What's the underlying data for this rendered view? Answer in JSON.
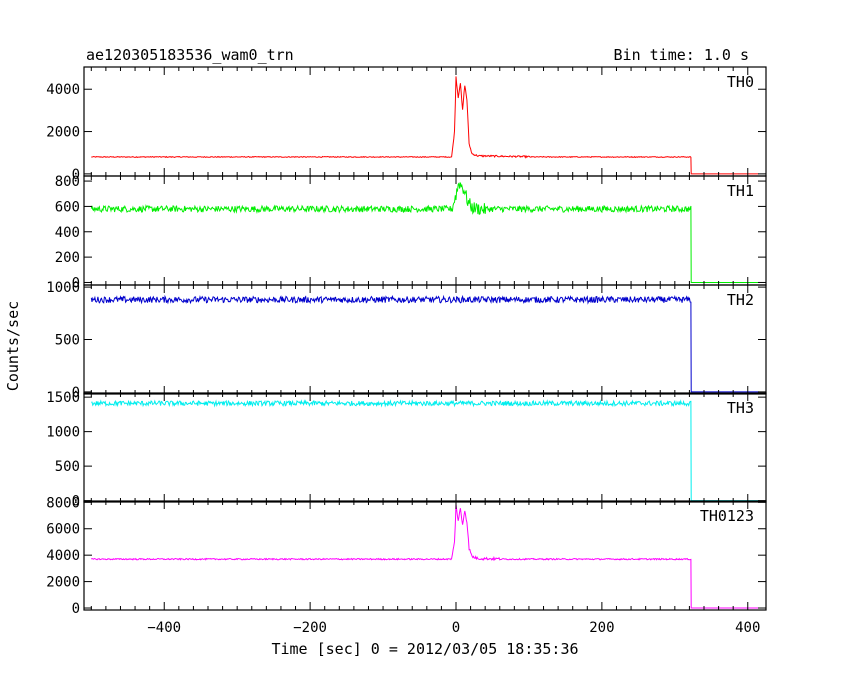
{
  "header": {
    "title": "ae120305183536_wam0_trn",
    "bin_time": "Bin time: 1.0 s"
  },
  "chart_data": {
    "type": "line",
    "xlabel": "Time [sec] 0 = 2012/03/05 18:35:36",
    "ylabel": "Counts/sec",
    "xlim": [
      -510,
      425
    ],
    "x_ticks": [
      -400,
      -200,
      0,
      200,
      400
    ],
    "x_tick_labels": [
      "−400",
      "−200",
      "0",
      "200",
      "400"
    ],
    "grid": false,
    "panels": [
      {
        "name": "TH0",
        "color": "#ff0000",
        "ylim": [
          -100,
          5050
        ],
        "y_ticks": [
          0,
          2000,
          4000
        ],
        "y_tick_labels": [
          "0",
          "2000",
          "4000"
        ],
        "baseline": 800,
        "noise": 20,
        "flare": [
          [
            -6,
            800
          ],
          [
            -2,
            2000
          ],
          [
            0,
            4600
          ],
          [
            3,
            3600
          ],
          [
            6,
            4300
          ],
          [
            9,
            3000
          ],
          [
            12,
            4200
          ],
          [
            15,
            3500
          ],
          [
            18,
            1400
          ],
          [
            22,
            950
          ],
          [
            30,
            850
          ],
          [
            50,
            840
          ],
          [
            100,
            810
          ]
        ],
        "drop_time": 322,
        "post_value": 0,
        "x_end": 415
      },
      {
        "name": "TH1",
        "color": "#00ee00",
        "ylim": [
          -20,
          840
        ],
        "y_ticks": [
          0,
          200,
          400,
          600,
          800
        ],
        "y_tick_labels": [
          "0",
          "200",
          "400",
          "600",
          "800"
        ],
        "baseline": 580,
        "noise": 25,
        "flare": [
          [
            -6,
            575
          ],
          [
            0,
            690
          ],
          [
            4,
            790
          ],
          [
            8,
            760
          ],
          [
            12,
            720
          ],
          [
            16,
            640
          ],
          [
            22,
            590
          ],
          [
            40,
            575
          ]
        ],
        "drop_time": 322,
        "post_value": 0,
        "x_end": 415
      },
      {
        "name": "TH2",
        "color": "#0000cc",
        "ylim": [
          -20,
          1020
        ],
        "y_ticks": [
          0,
          500,
          1000
        ],
        "y_tick_labels": [
          "0",
          "500",
          "1000"
        ],
        "baseline": 880,
        "noise": 30,
        "flare": [],
        "drop_time": 322,
        "post_value": 0,
        "x_end": 415
      },
      {
        "name": "TH3",
        "color": "#00eeee",
        "ylim": [
          -20,
          1560
        ],
        "y_ticks": [
          0,
          500,
          1000,
          1500
        ],
        "y_tick_labels": [
          "0",
          "500",
          "1000",
          "1500"
        ],
        "baseline": 1410,
        "noise": 35,
        "flare": [],
        "drop_time": 322,
        "post_value": 0,
        "x_end": 415
      },
      {
        "name": "TH0123",
        "color": "#ff00ff",
        "ylim": [
          -150,
          8100
        ],
        "y_ticks": [
          0,
          2000,
          4000,
          6000,
          8000
        ],
        "y_tick_labels": [
          "0",
          "2000",
          "4000",
          "6000",
          "8000"
        ],
        "baseline": 3700,
        "noise": 50,
        "flare": [
          [
            -6,
            3700
          ],
          [
            -2,
            5000
          ],
          [
            0,
            7800
          ],
          [
            3,
            6600
          ],
          [
            6,
            7500
          ],
          [
            9,
            6300
          ],
          [
            12,
            7400
          ],
          [
            15,
            6500
          ],
          [
            18,
            4500
          ],
          [
            22,
            3900
          ],
          [
            30,
            3750
          ],
          [
            60,
            3720
          ]
        ],
        "drop_time": 322,
        "post_value": 0,
        "x_end": 415
      }
    ]
  }
}
